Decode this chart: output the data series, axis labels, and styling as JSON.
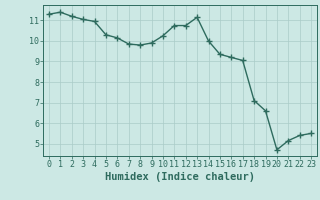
{
  "x": [
    0,
    1,
    2,
    3,
    4,
    5,
    6,
    7,
    8,
    9,
    10,
    11,
    12,
    13,
    14,
    15,
    16,
    17,
    18,
    19,
    20,
    21,
    22,
    23
  ],
  "y": [
    11.3,
    11.4,
    11.2,
    11.05,
    10.95,
    10.3,
    10.15,
    9.85,
    9.8,
    9.9,
    10.25,
    10.75,
    10.75,
    11.15,
    10.0,
    9.35,
    9.2,
    9.05,
    7.1,
    6.6,
    4.7,
    5.15,
    5.4,
    5.5
  ],
  "line_color": "#2e6b5e",
  "marker": "+",
  "marker_size": 4,
  "bg_color": "#cce8e4",
  "grid_color": "#aaccc8",
  "axis_color": "#2e6b5e",
  "xlabel": "Humidex (Indice chaleur)",
  "ylim": [
    4.4,
    11.75
  ],
  "xlim": [
    -0.5,
    23.5
  ],
  "yticks": [
    5,
    6,
    7,
    8,
    9,
    10,
    11
  ],
  "xticks": [
    0,
    1,
    2,
    3,
    4,
    5,
    6,
    7,
    8,
    9,
    10,
    11,
    12,
    13,
    14,
    15,
    16,
    17,
    18,
    19,
    20,
    21,
    22,
    23
  ],
  "font_color": "#2e6b5e",
  "tick_font_size": 6.0,
  "label_font_size": 7.5,
  "line_width": 1.0
}
